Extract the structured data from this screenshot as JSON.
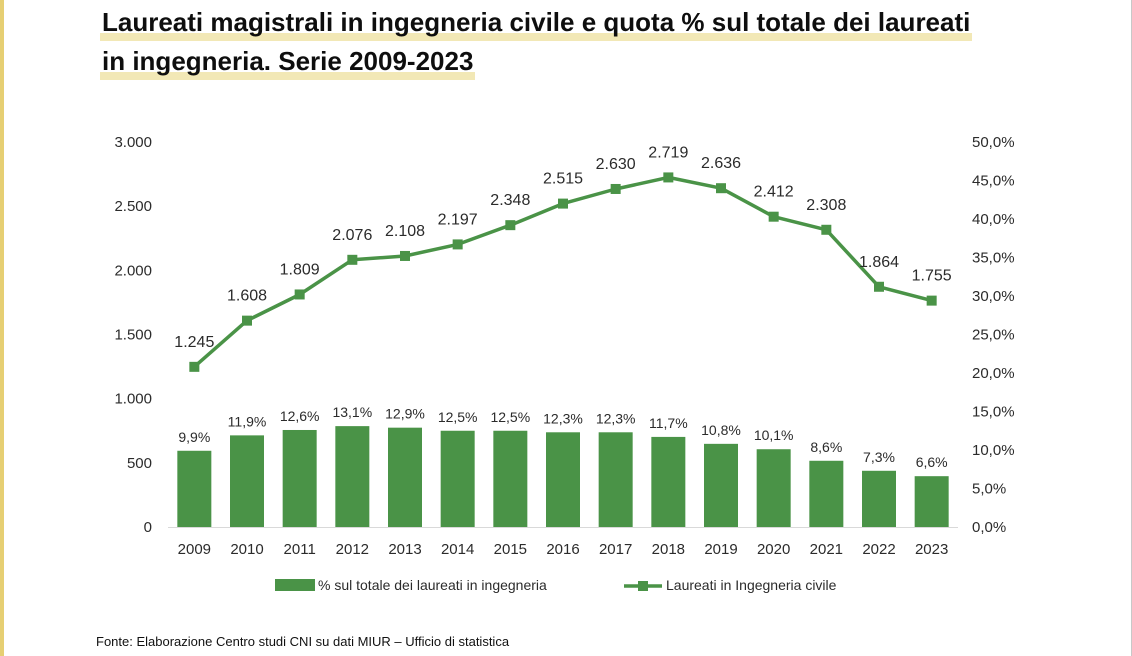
{
  "title": {
    "line1": "Laureati magistrali in ingegneria civile e quota % sul totale dei laureati",
    "line2": "in ingegneria. Serie 2009-2023"
  },
  "source": "Fonte: Elaborazione Centro studi CNI su dati MIUR – Ufficio di statistica",
  "colors": {
    "bar": "#4a9347",
    "line": "#4a9347",
    "axis": "#d9d9d9",
    "title_highlight": "#f2e8b6"
  },
  "chart_data": {
    "type": "bar+line",
    "categories": [
      "2009",
      "2010",
      "2011",
      "2012",
      "2013",
      "2014",
      "2015",
      "2016",
      "2017",
      "2018",
      "2019",
      "2020",
      "2021",
      "2022",
      "2023"
    ],
    "series": [
      {
        "name": "% sul totale dei laureati in ingegneria",
        "type": "bar",
        "axis": "right",
        "values": [
          9.9,
          11.9,
          12.6,
          13.1,
          12.9,
          12.5,
          12.5,
          12.3,
          12.3,
          11.7,
          10.8,
          10.1,
          8.6,
          7.3,
          6.6
        ],
        "labels": [
          "9,9%",
          "11,9%",
          "12,6%",
          "13,1%",
          "12,9%",
          "12,5%",
          "12,5%",
          "12,3%",
          "12,3%",
          "11,7%",
          "10,8%",
          "10,1%",
          "8,6%",
          "7,3%",
          "6,6%"
        ]
      },
      {
        "name": "Laureati in Ingegneria civile",
        "type": "line",
        "axis": "right",
        "values": [
          1245,
          1608,
          1809,
          2076,
          2108,
          2197,
          2348,
          2515,
          2630,
          2719,
          2636,
          2412,
          2308,
          1864,
          1755
        ],
        "labels": [
          "1.245",
          "1.608",
          "1.809",
          "2.076",
          "2.108",
          "2.197",
          "2.348",
          "2.515",
          "2.630",
          "2.719",
          "2.636",
          "2.412",
          "2.308",
          "1.864",
          "1.755"
        ],
        "right_axis_values": [
          20.8,
          26.8,
          30.2,
          34.7,
          35.2,
          36.7,
          39.2,
          42.0,
          43.9,
          45.4,
          44.0,
          40.3,
          38.6,
          31.2,
          29.4
        ]
      }
    ],
    "left_axis": {
      "ticks": [
        0,
        500,
        1000,
        1500,
        2000,
        2500,
        3000
      ],
      "tick_labels": [
        "0",
        "500",
        "1.000",
        "1.500",
        "2.000",
        "2.500",
        "3.000"
      ],
      "ylim": [
        0,
        3000
      ]
    },
    "right_axis": {
      "ticks": [
        0,
        5,
        10,
        15,
        20,
        25,
        30,
        35,
        40,
        45,
        50
      ],
      "tick_labels": [
        "0,0%",
        "5,0%",
        "10,0%",
        "15,0%",
        "20,0%",
        "25,0%",
        "30,0%",
        "35,0%",
        "40,0%",
        "45,0%",
        "50,0%"
      ],
      "ylim": [
        0,
        50
      ]
    },
    "legend": {
      "position": "bottom",
      "items": [
        "% sul totale dei laureati in ingegneria",
        "Laureati in Ingegneria civile"
      ]
    },
    "grid": false
  }
}
